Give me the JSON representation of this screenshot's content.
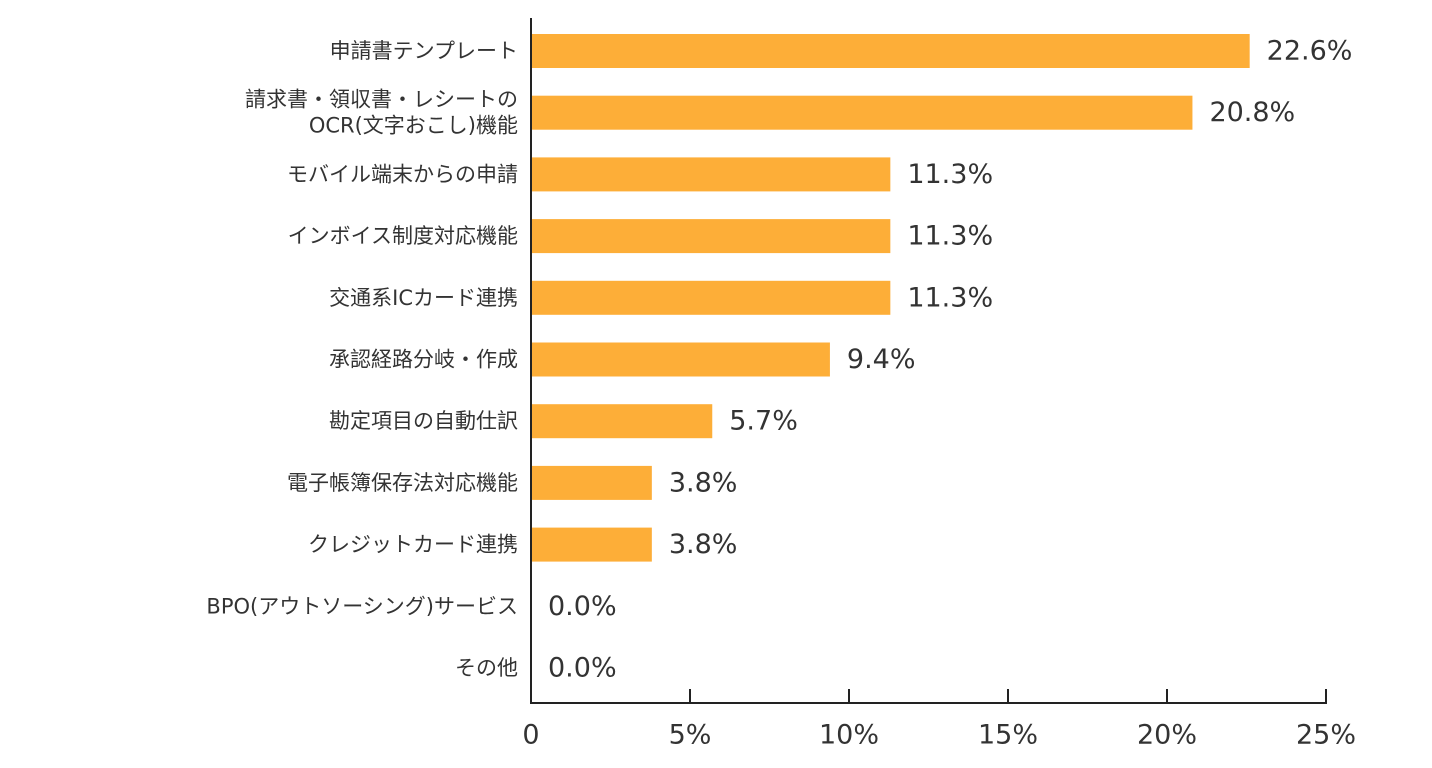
{
  "chart_data": {
    "type": "bar",
    "orientation": "horizontal",
    "bar_color": "#FDAE38",
    "categories": [
      [
        "申請書テンプレート"
      ],
      [
        "請求書・領収書・レシートの",
        "OCR(文字おこし)機能"
      ],
      [
        "モバイル端末からの申請"
      ],
      [
        "インボイス制度対応機能"
      ],
      [
        "交通系ICカード連携"
      ],
      [
        "承認経路分岐・作成"
      ],
      [
        "勘定項目の自動仕訳"
      ],
      [
        "電子帳簿保存法対応機能"
      ],
      [
        "クレジットカード連携"
      ],
      [
        "BPO(アウトソーシング)サービス"
      ],
      [
        "その他"
      ]
    ],
    "values": [
      22.6,
      20.8,
      11.3,
      11.3,
      11.3,
      9.4,
      5.7,
      3.8,
      3.8,
      0.0,
      0.0
    ],
    "value_labels": [
      "22.6%",
      "20.8%",
      "11.3%",
      "11.3%",
      "11.3%",
      "9.4%",
      "5.7%",
      "3.8%",
      "3.8%",
      "0.0%",
      "0.0%"
    ],
    "xlim": [
      0,
      25
    ],
    "x_ticks": [
      0,
      5,
      10,
      15,
      20,
      25
    ],
    "x_tick_labels": [
      "0",
      "5%",
      "10%",
      "15%",
      "20%",
      "25%"
    ],
    "grid": false,
    "legend": "none"
  }
}
